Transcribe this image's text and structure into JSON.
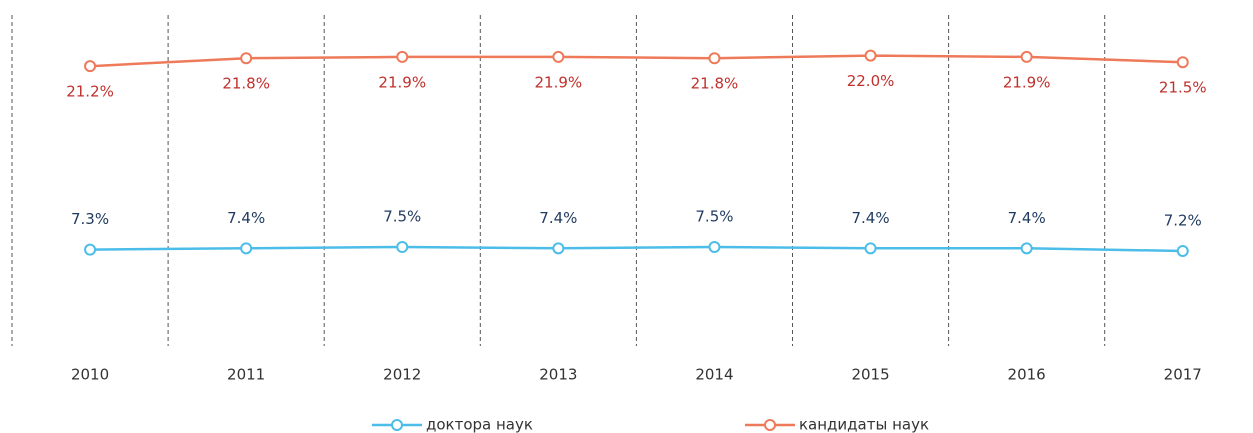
{
  "chart_data": {
    "type": "line",
    "categories": [
      "2010",
      "2011",
      "2012",
      "2013",
      "2014",
      "2015",
      "2016",
      "2017"
    ],
    "series": [
      {
        "name": "доктора наук",
        "color": "#4cbde9",
        "label_color": "#1f3a5f",
        "label_position": "above",
        "values": [
          7.3,
          7.4,
          7.5,
          7.4,
          7.5,
          7.4,
          7.4,
          7.2
        ],
        "value_labels": [
          "7.3%",
          "7.4%",
          "7.5%",
          "7.4%",
          "7.5%",
          "7.4%",
          "7.4%",
          "7.2%"
        ]
      },
      {
        "name": "кандидаты наук",
        "color": "#ee7a5a",
        "label_color": "#c0302c",
        "label_position": "below",
        "values": [
          21.2,
          21.8,
          21.9,
          21.9,
          21.8,
          22.0,
          21.9,
          21.5
        ],
        "value_labels": [
          "21.2%",
          "21.8%",
          "21.9%",
          "21.9%",
          "21.8%",
          "22.0%",
          "21.9%",
          "21.5%"
        ]
      }
    ],
    "ylim": [
      0,
      25
    ],
    "grid": true,
    "legend": "bottom"
  }
}
